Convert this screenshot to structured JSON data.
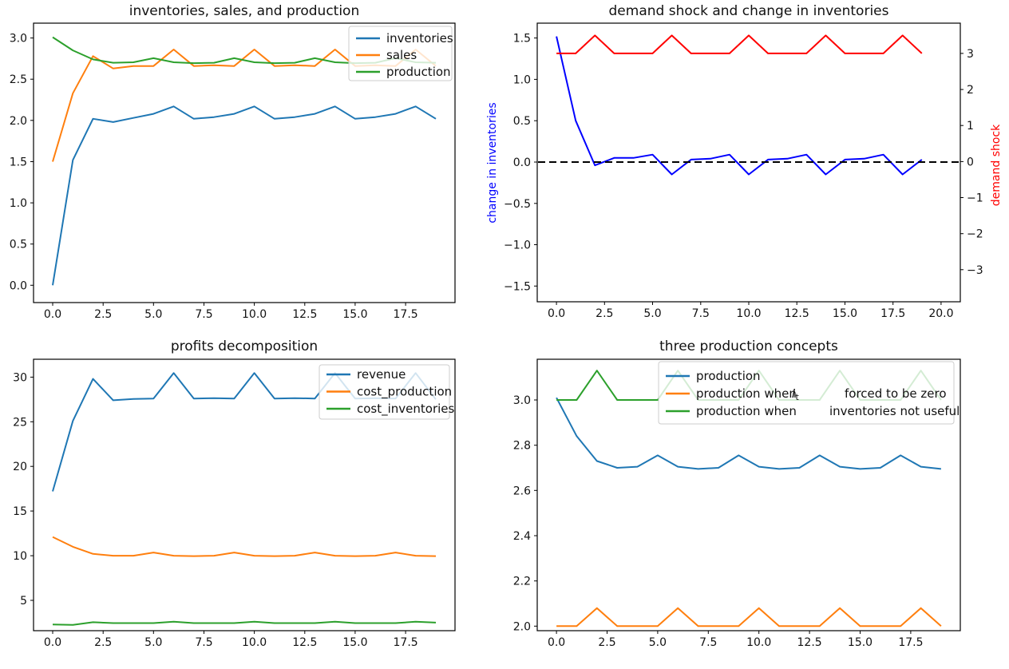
{
  "figure": {
    "background": "#ffffff",
    "frame_color": "#000000"
  },
  "chart_data": [
    {
      "type": "line",
      "title": "inventories, sales, and production",
      "x": [
        0,
        1,
        2,
        3,
        4,
        5,
        6,
        7,
        8,
        9,
        10,
        11,
        12,
        13,
        14,
        15,
        16,
        17,
        18,
        19
      ],
      "series": [
        {
          "name": "inventories",
          "color": "#1f77b4",
          "values": [
            0.0,
            1.52,
            2.02,
            1.98,
            2.03,
            2.08,
            2.17,
            2.02,
            2.04,
            2.08,
            2.17,
            2.02,
            2.04,
            2.08,
            2.17,
            2.02,
            2.04,
            2.08,
            2.17,
            2.02
          ]
        },
        {
          "name": "sales",
          "color": "#ff7f0e",
          "values": [
            1.5,
            2.33,
            2.78,
            2.63,
            2.66,
            2.66,
            2.86,
            2.66,
            2.67,
            2.66,
            2.86,
            2.66,
            2.67,
            2.66,
            2.86,
            2.66,
            2.67,
            2.66,
            2.86,
            2.66
          ]
        },
        {
          "name": "production",
          "color": "#2ca02c",
          "values": [
            3.01,
            2.85,
            2.74,
            2.7,
            2.705,
            2.755,
            2.705,
            2.695,
            2.7,
            2.755,
            2.705,
            2.695,
            2.7,
            2.755,
            2.705,
            2.695,
            2.7,
            2.755,
            2.705,
            2.7
          ]
        }
      ],
      "xlim": [
        -0.95,
        19.95
      ],
      "ylim": [
        -0.21,
        3.18
      ],
      "xticks": {
        "values": [
          0,
          2.5,
          5,
          7.5,
          10,
          12.5,
          15,
          17.5
        ],
        "labels": [
          "0.0",
          "2.5",
          "5.0",
          "7.5",
          "10.0",
          "12.5",
          "15.0",
          "17.5"
        ]
      },
      "yticks": {
        "values": [
          0,
          0.5,
          1,
          1.5,
          2,
          2.5,
          3
        ],
        "labels": [
          "0.0",
          "0.5",
          "1.0",
          "1.5",
          "2.0",
          "2.5",
          "3.0"
        ]
      },
      "grid": false,
      "legend": {
        "position": "upper right",
        "entries": [
          {
            "label": "inventories",
            "color": "#1f77b4"
          },
          {
            "label": "sales",
            "color": "#ff7f0e"
          },
          {
            "label": "production",
            "color": "#2ca02c"
          }
        ]
      }
    },
    {
      "type": "line",
      "title": "demand shock and change in inventories",
      "x": [
        0,
        1,
        2,
        3,
        4,
        5,
        6,
        7,
        8,
        9,
        10,
        11,
        12,
        13,
        14,
        15,
        16,
        17,
        18,
        19
      ],
      "series": [
        {
          "name": "change in inventories",
          "color": "#0000ff",
          "axis": "left",
          "values": [
            1.52,
            0.5,
            -0.04,
            0.05,
            0.05,
            0.09,
            -0.15,
            0.03,
            0.04,
            0.09,
            -0.15,
            0.03,
            0.04,
            0.09,
            -0.15,
            0.03,
            0.04,
            0.09,
            -0.15,
            0.03
          ]
        },
        {
          "name": "demand shock",
          "color": "#ff0000",
          "axis": "right",
          "values": [
            3,
            3,
            3.5,
            3,
            3,
            3,
            3.5,
            3,
            3,
            3,
            3.5,
            3,
            3,
            3,
            3.5,
            3,
            3,
            3,
            3.5,
            3
          ]
        }
      ],
      "hline": {
        "y": 0,
        "color": "#000000",
        "style": "dashed"
      },
      "xlim": [
        -1.0,
        21.0
      ],
      "ylim": [
        -1.69,
        1.68
      ],
      "ylim_right": [
        -3.89,
        3.84
      ],
      "xticks": {
        "values": [
          0,
          2.5,
          5,
          7.5,
          10,
          12.5,
          15,
          17.5,
          20
        ],
        "labels": [
          "0.0",
          "2.5",
          "5.0",
          "7.5",
          "10.0",
          "12.5",
          "15.0",
          "17.5",
          "20.0"
        ]
      },
      "yticks": {
        "values": [
          -1.5,
          -1,
          -0.5,
          0,
          0.5,
          1,
          1.5
        ],
        "labels": [
          "−1.5",
          "−1.0",
          "−0.5",
          "0.0",
          "0.5",
          "1.0",
          "1.5"
        ]
      },
      "yticks_right": {
        "values": [
          -3,
          -2,
          -1,
          0,
          1,
          2,
          3
        ],
        "labels": [
          "−3",
          "−2",
          "−1",
          "0",
          "1",
          "2",
          "3"
        ]
      },
      "ylabel_left": {
        "text": "change in inventories",
        "color": "#0000ff"
      },
      "ylabel_right": {
        "text": "demand shock",
        "color": "#ff0000"
      },
      "grid": false
    },
    {
      "type": "line",
      "title": "profits decomposition",
      "x": [
        0,
        1,
        2,
        3,
        4,
        5,
        6,
        7,
        8,
        9,
        10,
        11,
        12,
        13,
        14,
        15,
        16,
        17,
        18,
        19
      ],
      "series": [
        {
          "name": "revenue",
          "color": "#1f77b4",
          "values": [
            17.2,
            25.1,
            29.8,
            27.4,
            27.55,
            27.6,
            30.45,
            27.6,
            27.65,
            27.6,
            30.45,
            27.6,
            27.65,
            27.6,
            30.45,
            27.6,
            27.65,
            27.6,
            30.45,
            27.5
          ]
        },
        {
          "name": "cost_production",
          "color": "#ff7f0e",
          "values": [
            12.1,
            11.0,
            10.2,
            10.0,
            10.0,
            10.35,
            10.0,
            9.95,
            10.0,
            10.35,
            10.0,
            9.95,
            10.0,
            10.35,
            10.0,
            9.95,
            10.0,
            10.35,
            10.0,
            9.95
          ]
        },
        {
          "name": "cost_inventories",
          "color": "#2ca02c",
          "values": [
            2.3,
            2.25,
            2.55,
            2.45,
            2.45,
            2.45,
            2.6,
            2.45,
            2.45,
            2.45,
            2.6,
            2.45,
            2.45,
            2.45,
            2.6,
            2.45,
            2.45,
            2.45,
            2.6,
            2.5
          ]
        }
      ],
      "xlim": [
        -0.95,
        19.95
      ],
      "ylim": [
        1.6,
        32.0
      ],
      "xticks": {
        "values": [
          0,
          2.5,
          5,
          7.5,
          10,
          12.5,
          15,
          17.5
        ],
        "labels": [
          "0.0",
          "2.5",
          "5.0",
          "7.5",
          "10.0",
          "12.5",
          "15.0",
          "17.5"
        ]
      },
      "yticks": {
        "values": [
          5,
          10,
          15,
          20,
          25,
          30
        ],
        "labels": [
          "5",
          "10",
          "15",
          "20",
          "25",
          "30"
        ]
      },
      "grid": false,
      "legend": {
        "position": "upper right",
        "entries": [
          {
            "label": "revenue",
            "color": "#1f77b4"
          },
          {
            "label": "cost_production",
            "color": "#ff7f0e"
          },
          {
            "label": "cost_inventories",
            "color": "#2ca02c"
          }
        ]
      }
    },
    {
      "type": "line",
      "title": "three production concepts",
      "x": [
        0,
        1,
        2,
        3,
        4,
        5,
        6,
        7,
        8,
        9,
        10,
        11,
        12,
        13,
        14,
        15,
        16,
        17,
        18,
        19
      ],
      "series": [
        {
          "name": "production",
          "color": "#1f77b4",
          "values": [
            3.01,
            2.84,
            2.73,
            2.7,
            2.705,
            2.755,
            2.705,
            2.695,
            2.7,
            2.755,
            2.705,
            2.695,
            2.7,
            2.755,
            2.705,
            2.695,
            2.7,
            2.755,
            2.705,
            2.695
          ]
        },
        {
          "name": "production when I_t forced to be zero",
          "color": "#ff7f0e",
          "values": [
            2.0,
            2.0,
            2.08,
            2.0,
            2.0,
            2.0,
            2.08,
            2.0,
            2.0,
            2.0,
            2.08,
            2.0,
            2.0,
            2.0,
            2.08,
            2.0,
            2.0,
            2.0,
            2.08,
            2.0
          ]
        },
        {
          "name": "production when inventories not useful",
          "color": "#2ca02c",
          "values": [
            3.0,
            3.0,
            3.13,
            3.0,
            3.0,
            3.0,
            3.13,
            3.0,
            3.0,
            3.0,
            3.13,
            3.0,
            3.0,
            3.0,
            3.13,
            3.0,
            3.0,
            3.0,
            3.13,
            3.0
          ]
        }
      ],
      "xlim": [
        -0.95,
        19.95
      ],
      "ylim": [
        1.98,
        3.18
      ],
      "xticks": {
        "values": [
          0,
          2.5,
          5,
          7.5,
          10,
          12.5,
          15,
          17.5
        ],
        "labels": [
          "0.0",
          "2.5",
          "5.0",
          "7.5",
          "10.0",
          "12.5",
          "15.0",
          "17.5"
        ]
      },
      "yticks": {
        "values": [
          2.0,
          2.2,
          2.4,
          2.6,
          2.8,
          3.0
        ],
        "labels": [
          "2.0",
          "2.2",
          "2.4",
          "2.6",
          "2.8",
          "3.0"
        ]
      },
      "grid": false,
      "legend": {
        "position": "upper right",
        "entries": [
          {
            "label": "production",
            "color": "#1f77b4"
          },
          {
            "label_pre": "production when",
            "label_math": "I_t",
            "label_post": "forced to be zero",
            "color": "#ff7f0e"
          },
          {
            "label_pre": "production when",
            "label_post": "inventories not useful",
            "color": "#2ca02c"
          }
        ]
      }
    }
  ]
}
